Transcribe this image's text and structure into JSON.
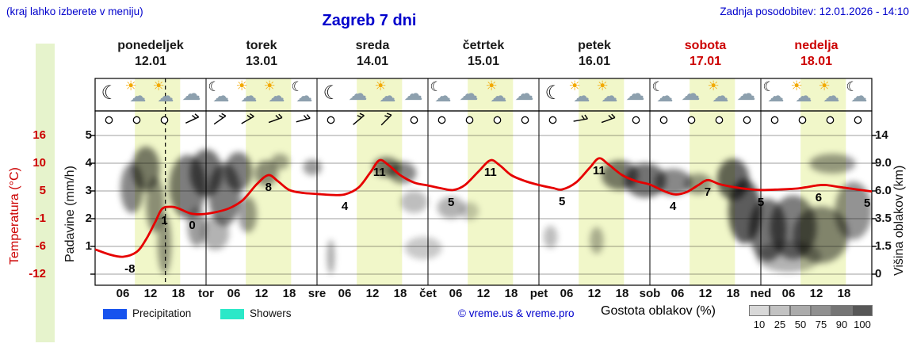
{
  "header": {
    "hint": "(kraj lahko izberete v meniju)",
    "title": "Zagreb 7 dni",
    "updated": "Zadnja posodobitev: 12.01.2026 - 14:10"
  },
  "axes": {
    "temp_title": "Temperatura (°C)",
    "precip_title": "Padavine (mm/h)",
    "cloud_title": "Višina oblakov (km)",
    "temp_ticks": [
      "16",
      "10",
      "5",
      "-1",
      "-6",
      "-12"
    ],
    "precip_ticks": [
      "5",
      "4",
      "3",
      "2",
      "1"
    ],
    "cloud_ticks": [
      "14",
      "9.0",
      "6.0",
      "3.5",
      "1.5",
      "0"
    ]
  },
  "days": [
    {
      "name": "ponedeljek",
      "date": "12.01",
      "weekend": false
    },
    {
      "name": "torek",
      "date": "13.01",
      "weekend": false
    },
    {
      "name": "sreda",
      "date": "14.01",
      "weekend": false
    },
    {
      "name": "četrtek",
      "date": "15.01",
      "weekend": false
    },
    {
      "name": "petek",
      "date": "16.01",
      "weekend": false
    },
    {
      "name": "sobota",
      "date": "17.01",
      "weekend": true
    },
    {
      "name": "nedelja",
      "date": "18.01",
      "weekend": true
    }
  ],
  "x_labels": [
    "06",
    "12",
    "18",
    "tor",
    "06",
    "12",
    "18",
    "sre",
    "06",
    "12",
    "18",
    "čet",
    "06",
    "12",
    "18",
    "pet",
    "06",
    "12",
    "18",
    "sob",
    "06",
    "12",
    "18",
    "ned",
    "06",
    "12",
    "18"
  ],
  "legend": {
    "precipitation_label": "Precipitation",
    "showers_label": "Showers",
    "copyright": "© vreme.us & vreme.pro",
    "cloud_density_label": "Gostota oblakov (%)",
    "precip_color": "#1753ee",
    "showers_color": "#2be8c8",
    "density_scale": {
      "values": [
        "10",
        "25",
        "50",
        "75",
        "90",
        "100"
      ],
      "colors": [
        "#d8d8d8",
        "#c2c2c2",
        "#ababab",
        "#909090",
        "#757575",
        "#575757"
      ]
    }
  },
  "colors": {
    "blue": "#0000cc",
    "red": "#cc0000",
    "curve": "#e60000",
    "day_band": "#f1f7c9",
    "left_strip": "#e6f3cc"
  },
  "chart_data": {
    "type": "meteogram",
    "days_span": 7,
    "current_time_h": 15.2,
    "day_band_hours": [
      8.6,
      18.4
    ],
    "temp_axis": {
      "unit": "°C",
      "ticks": [
        16,
        10,
        5,
        -1,
        -6,
        -12
      ]
    },
    "precip_axis": {
      "unit": "mm/h",
      "ticks": [
        5,
        4,
        3,
        2,
        1
      ]
    },
    "cloud_height_axis_km": [
      0,
      1.5,
      3.5,
      6,
      9,
      14
    ],
    "temp_series": [
      [
        0,
        -7
      ],
      [
        3,
        -8
      ],
      [
        6,
        -8.5
      ],
      [
        9,
        -7.5
      ],
      [
        11,
        -5
      ],
      [
        13,
        -1.5
      ],
      [
        14.5,
        1.2
      ],
      [
        16.5,
        1.6
      ],
      [
        18,
        1.3
      ],
      [
        20.5,
        0.3
      ],
      [
        23,
        0.1
      ],
      [
        26,
        0.5
      ],
      [
        29,
        1.3
      ],
      [
        32,
        3
      ],
      [
        35,
        6.2
      ],
      [
        37.5,
        8
      ],
      [
        39.5,
        6.8
      ],
      [
        42,
        5
      ],
      [
        45,
        4.4
      ],
      [
        48,
        4.2
      ],
      [
        51,
        4
      ],
      [
        54,
        4.1
      ],
      [
        57,
        5.5
      ],
      [
        59.5,
        8.5
      ],
      [
        61.5,
        11
      ],
      [
        63.5,
        10
      ],
      [
        66,
        8
      ],
      [
        69,
        6.5
      ],
      [
        72,
        5.9
      ],
      [
        75,
        5.3
      ],
      [
        77.5,
        5
      ],
      [
        80,
        6
      ],
      [
        83,
        8.8
      ],
      [
        85.5,
        11
      ],
      [
        87.5,
        10
      ],
      [
        90,
        8
      ],
      [
        93,
        6.8
      ],
      [
        96,
        6
      ],
      [
        99,
        5.4
      ],
      [
        101,
        5.1
      ],
      [
        104,
        6.5
      ],
      [
        107,
        9.5
      ],
      [
        109,
        11.4
      ],
      [
        111,
        10.2
      ],
      [
        114,
        8
      ],
      [
        117,
        6.8
      ],
      [
        120,
        6.1
      ],
      [
        123,
        4.8
      ],
      [
        125.5,
        4.1
      ],
      [
        128,
        4.6
      ],
      [
        130.5,
        6
      ],
      [
        132.5,
        7
      ],
      [
        135,
        6.2
      ],
      [
        138,
        5.6
      ],
      [
        141,
        5.2
      ],
      [
        144,
        5
      ],
      [
        148,
        5.1
      ],
      [
        152,
        5.3
      ],
      [
        156,
        5.9
      ],
      [
        158,
        6
      ],
      [
        161,
        5.6
      ],
      [
        164,
        5.2
      ],
      [
        168,
        4.7
      ]
    ],
    "temp_labels": [
      [
        7.5,
        "-8",
        -8.4
      ],
      [
        15,
        "1",
        1.3
      ],
      [
        21,
        "0",
        0.3
      ],
      [
        37.5,
        "8",
        8
      ],
      [
        54,
        "4",
        4.1
      ],
      [
        61.5,
        "11",
        11
      ],
      [
        77,
        "5",
        5
      ],
      [
        85.5,
        "11",
        11
      ],
      [
        101,
        "5",
        5.1
      ],
      [
        109,
        "11",
        11.4
      ],
      [
        125,
        "4",
        4.2
      ],
      [
        132.5,
        "7",
        7
      ],
      [
        144,
        "5",
        5
      ],
      [
        156.5,
        "6",
        6
      ],
      [
        167,
        "5",
        4.8
      ]
    ],
    "cloud_blobs": [
      [
        8,
        6.5,
        2.5,
        2.5,
        55
      ],
      [
        11,
        9,
        3,
        3,
        60
      ],
      [
        13,
        5,
        2,
        2.5,
        50
      ],
      [
        15,
        2,
        1.5,
        2,
        45
      ],
      [
        20,
        7,
        4,
        3.5,
        60
      ],
      [
        24,
        8.5,
        3.5,
        3,
        65
      ],
      [
        28,
        6,
        3.5,
        3,
        60
      ],
      [
        31,
        8.5,
        3,
        2.5,
        60
      ],
      [
        26,
        2.5,
        3,
        1.2,
        35
      ],
      [
        33,
        4,
        2,
        1.5,
        45
      ],
      [
        22,
        3,
        2,
        1.5,
        45
      ],
      [
        37,
        8,
        2.5,
        1.5,
        50
      ],
      [
        40,
        9.5,
        2,
        1.2,
        40
      ],
      [
        47,
        8.7,
        2,
        1,
        45
      ],
      [
        51,
        1,
        0.8,
        1,
        40
      ],
      [
        63,
        8.8,
        3,
        1.3,
        60
      ],
      [
        66.5,
        8,
        3,
        1.2,
        55
      ],
      [
        69,
        5,
        3,
        1,
        30
      ],
      [
        71,
        1.5,
        4,
        0.7,
        25
      ],
      [
        77,
        4.5,
        3,
        1,
        35
      ],
      [
        81,
        4.2,
        2,
        0.8,
        25
      ],
      [
        98.5,
        2.2,
        1.5,
        0.8,
        30
      ],
      [
        108.5,
        2,
        1.5,
        0.9,
        35
      ],
      [
        113.5,
        7.8,
        4,
        1.7,
        60
      ],
      [
        119,
        7.2,
        4.5,
        1.8,
        65
      ],
      [
        125,
        7,
        4,
        1.4,
        55
      ],
      [
        130.5,
        6.8,
        3,
        1.1,
        45
      ],
      [
        138,
        7.5,
        3.5,
        2.3,
        70
      ],
      [
        140.5,
        4.5,
        3.5,
        2.8,
        75
      ],
      [
        145.5,
        3,
        4,
        2.3,
        65
      ],
      [
        151,
        3.2,
        5,
        2.4,
        60
      ],
      [
        157,
        2.6,
        6,
        2,
        55
      ],
      [
        159.5,
        9.3,
        5,
        1.4,
        45
      ],
      [
        164,
        4.5,
        4,
        2.5,
        50
      ],
      [
        150,
        1,
        7,
        0.9,
        35
      ]
    ],
    "weather_icons": [
      "moon",
      "sun-cloud",
      "sun-cloud",
      "cloud",
      "moon-cloud",
      "sun-cloud",
      "sun-cloud",
      "moon-cloud",
      "moon",
      "cloud",
      "sun-cloud",
      "cloud",
      "moon-cloud",
      "cloud",
      "sun-cloud",
      "cloud",
      "moon",
      "sun-cloud",
      "sun-cloud",
      "cloud",
      "moon-cloud",
      "cloud",
      "sun-cloud",
      "cloud",
      "moon-cloud",
      "sun-cloud",
      "sun-cloud",
      "moon-cloud"
    ],
    "wind": [
      {
        "t": "calm"
      },
      {
        "t": "calm"
      },
      {
        "t": "calm"
      },
      {
        "t": "barb",
        "dir": 25
      },
      {
        "t": "barb",
        "dir": 35
      },
      {
        "t": "barb",
        "dir": 30
      },
      {
        "t": "barb",
        "dir": 20
      },
      {
        "t": "barb",
        "dir": 15
      },
      {
        "t": "calm"
      },
      {
        "t": "barb",
        "dir": 40
      },
      {
        "t": "barb",
        "dir": 45
      },
      {
        "t": "calm"
      },
      {
        "t": "calm"
      },
      {
        "t": "calm"
      },
      {
        "t": "calm"
      },
      {
        "t": "calm"
      },
      {
        "t": "calm"
      },
      {
        "t": "barb",
        "dir": 10
      },
      {
        "t": "barb",
        "dir": 20
      },
      {
        "t": "calm"
      },
      {
        "t": "calm"
      },
      {
        "t": "calm"
      },
      {
        "t": "calm"
      },
      {
        "t": "calm"
      },
      {
        "t": "calm"
      },
      {
        "t": "calm"
      },
      {
        "t": "calm"
      },
      {
        "t": "calm"
      }
    ]
  }
}
